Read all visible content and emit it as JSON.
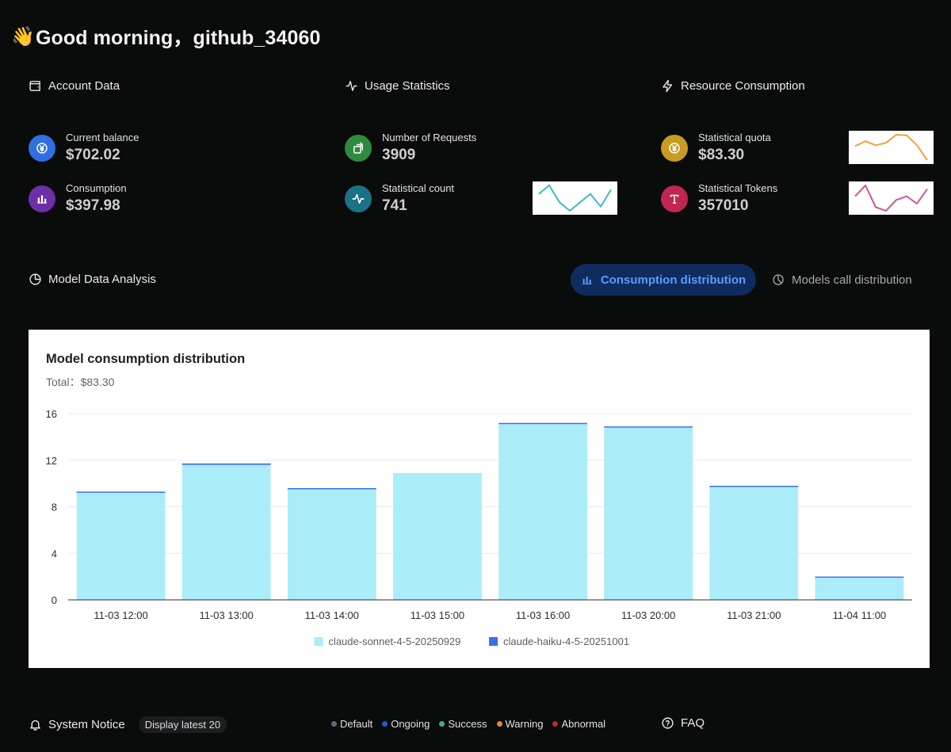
{
  "greeting": {
    "emoji": "👋",
    "text": "Good morning，github_34060"
  },
  "account": {
    "title": "Account Data",
    "balance": {
      "label": "Current balance",
      "value": "$702.02",
      "color": "#2f6fe0"
    },
    "consumption": {
      "label": "Consumption",
      "value": "$397.98",
      "color": "#6c2fa8"
    }
  },
  "usage": {
    "title": "Usage Statistics",
    "requests": {
      "label": "Number of Requests",
      "value": "3909",
      "color": "#2e8b3e"
    },
    "count": {
      "label": "Statistical count",
      "value": "741",
      "color": "#1b7185",
      "trend": [
        6,
        8,
        4,
        2,
        4,
        6,
        3,
        7
      ],
      "line_color": "#3fb8d0"
    }
  },
  "resource": {
    "title": "Resource Consumption",
    "quota": {
      "label": "Statistical quota",
      "value": "$83.30",
      "color": "#c79b24",
      "trend": [
        9.2,
        11.7,
        9.6,
        10.9,
        15.1,
        14.8,
        9.7,
        1.9
      ],
      "line_color": "#f0a23c"
    },
    "tokens": {
      "label": "Statistical Tokens",
      "value": "357010",
      "color": "#c0264f",
      "trend": [
        6,
        9,
        3,
        2,
        5,
        6,
        4,
        8
      ],
      "line_color": "#d4539a"
    }
  },
  "analysis": {
    "title": "Model Data Analysis",
    "tab_active": "Consumption distribution",
    "tab_inactive": "Models call distribution"
  },
  "chart_data": {
    "type": "bar",
    "stacked": true,
    "title": "Model consumption distribution",
    "total": "Total：$83.30",
    "categories": [
      "11-03 12:00",
      "11-03 13:00",
      "11-03 14:00",
      "11-03 15:00",
      "11-03 16:00",
      "11-03 20:00",
      "11-03 21:00",
      "11-04 11:00"
    ],
    "series": [
      {
        "name": "claude-sonnet-4-5-20250929",
        "color": "#abecf9",
        "values": [
          9.2,
          11.6,
          9.5,
          10.9,
          15.1,
          14.8,
          9.7,
          1.9
        ]
      },
      {
        "name": "claude-haiku-4-5-20251001",
        "color": "#3d6fe0",
        "values": [
          0.05,
          0.12,
          0.05,
          0.0,
          0.02,
          0.02,
          0.02,
          0.08
        ]
      }
    ],
    "yticks": [
      "0",
      "4",
      "8",
      "12",
      "16"
    ],
    "ylim": [
      0,
      16
    ],
    "grid": true,
    "legend": "bottom"
  },
  "notice": {
    "title": "System Notice",
    "badge": "Display latest 20",
    "legend": [
      {
        "label": "Default",
        "color": "#5a6a7e"
      },
      {
        "label": "Ongoing",
        "color": "#1f5dd8"
      },
      {
        "label": "Success",
        "color": "#3cb371"
      },
      {
        "label": "Warning",
        "color": "#e08a2e"
      },
      {
        "label": "Abnormal",
        "color": "#c0271c"
      }
    ]
  },
  "faq": {
    "title": "FAQ"
  }
}
